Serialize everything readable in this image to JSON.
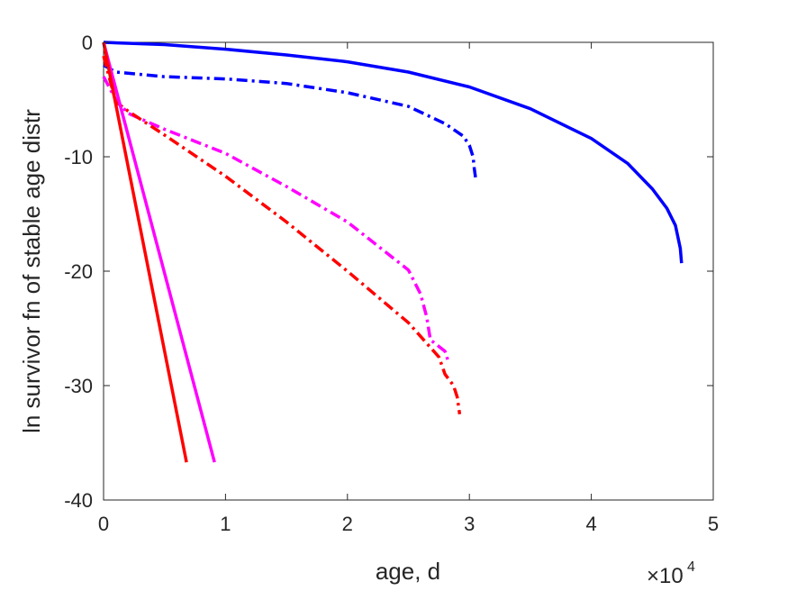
{
  "chart_data": {
    "type": "line",
    "title": "",
    "xlabel": "age, d",
    "ylabel": "ln survivor fn of stable age distr",
    "x_multiplier_label": "×10",
    "x_multiplier_exponent": "4",
    "xlim": [
      0,
      5
    ],
    "ylim": [
      -40,
      0
    ],
    "x_ticks": [
      0,
      1,
      2,
      3,
      4,
      5
    ],
    "x_tick_labels": [
      "0",
      "1",
      "2",
      "3",
      "4",
      "5"
    ],
    "y_ticks": [
      0,
      -10,
      -20,
      -30,
      -40
    ],
    "y_tick_labels": [
      "0",
      "-10",
      "-20",
      "-30",
      "-40"
    ],
    "grid": false,
    "legend": "none",
    "series": [
      {
        "color": "#0000ff",
        "style": "solid",
        "points": [
          [
            0,
            0
          ],
          [
            0.5,
            -0.2
          ],
          [
            1,
            -0.6
          ],
          [
            1.5,
            -1.1
          ],
          [
            2,
            -1.7
          ],
          [
            2.5,
            -2.6
          ],
          [
            3,
            -3.9
          ],
          [
            3.5,
            -5.8
          ],
          [
            4,
            -8.4
          ],
          [
            4.3,
            -10.6
          ],
          [
            4.5,
            -12.8
          ],
          [
            4.62,
            -14.5
          ],
          [
            4.69,
            -16.0
          ],
          [
            4.71,
            -17.0
          ],
          [
            4.73,
            -18.0
          ],
          [
            4.74,
            -19.3
          ]
        ]
      },
      {
        "color": "#0000ff",
        "style": "dashdot",
        "points": [
          [
            0,
            -2.0
          ],
          [
            0.1,
            -2.6
          ],
          [
            0.5,
            -3.0
          ],
          [
            1,
            -3.2
          ],
          [
            1.5,
            -3.6
          ],
          [
            2,
            -4.4
          ],
          [
            2.5,
            -5.6
          ],
          [
            2.8,
            -7.1
          ],
          [
            2.95,
            -8.2
          ],
          [
            3.0,
            -9.0
          ],
          [
            3.03,
            -10.0
          ],
          [
            3.04,
            -11.0
          ],
          [
            3.05,
            -11.8
          ]
        ]
      },
      {
        "color": "#ff00ff",
        "style": "dashdot",
        "points": [
          [
            0,
            -3.0
          ],
          [
            0.1,
            -5.0
          ],
          [
            0.2,
            -6.2
          ],
          [
            0.5,
            -7.6
          ],
          [
            1,
            -9.7
          ],
          [
            1.5,
            -12.6
          ],
          [
            2,
            -15.7
          ],
          [
            2.5,
            -19.9
          ],
          [
            2.6,
            -22.0
          ],
          [
            2.65,
            -24.0
          ],
          [
            2.68,
            -26.0
          ],
          [
            2.8,
            -27.0
          ],
          [
            2.83,
            -28.0
          ]
        ]
      },
      {
        "color": "#ff0000",
        "style": "dashdot",
        "points": [
          [
            0,
            -1.2
          ],
          [
            0.1,
            -5.2
          ],
          [
            0.2,
            -6.0
          ],
          [
            0.5,
            -8.1
          ],
          [
            1,
            -11.7
          ],
          [
            1.5,
            -15.7
          ],
          [
            2,
            -20.0
          ],
          [
            2.5,
            -24.5
          ],
          [
            2.75,
            -27.5
          ],
          [
            2.8,
            -29.0
          ],
          [
            2.87,
            -30.0
          ],
          [
            2.9,
            -31.0
          ],
          [
            2.92,
            -32.5
          ]
        ]
      },
      {
        "color": "#ff00ff",
        "style": "solid",
        "points": [
          [
            0,
            0
          ],
          [
            0.91,
            -36.7
          ]
        ]
      },
      {
        "color": "#ff0000",
        "style": "solid",
        "points": [
          [
            0,
            0
          ],
          [
            0.68,
            -36.7
          ]
        ]
      }
    ]
  }
}
